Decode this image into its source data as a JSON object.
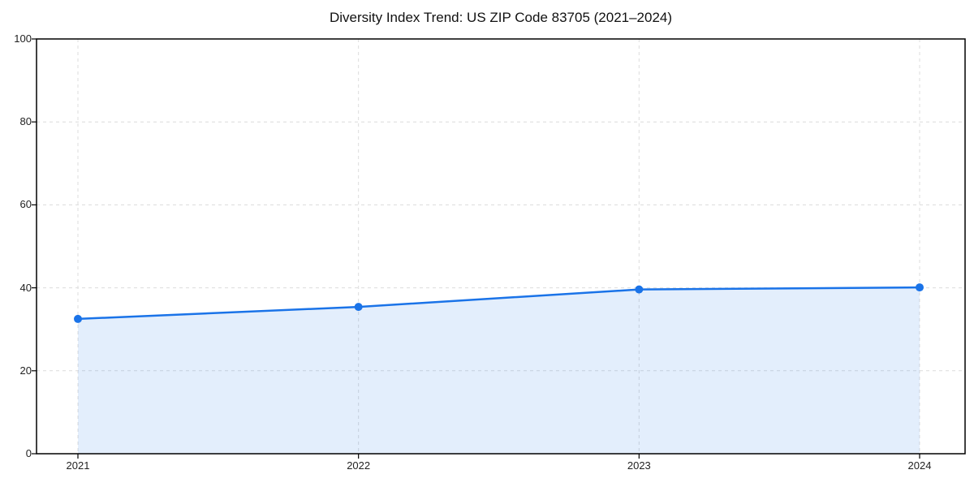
{
  "chart_data": {
    "type": "area",
    "title": "Diversity Index Trend: US ZIP Code 83705 (2021–2024)",
    "x": [
      2021,
      2022,
      2023,
      2024
    ],
    "series": [
      {
        "name": "Diversity Index",
        "values": [
          32.5,
          35.4,
          39.6,
          40.1
        ]
      }
    ],
    "xlabel": "",
    "ylabel": "",
    "ylim": [
      0,
      100
    ],
    "yticks": [
      0,
      20,
      40,
      60,
      80,
      100
    ],
    "xticks": [
      "2021",
      "2022",
      "2023",
      "2024"
    ],
    "grid": true,
    "legend": "none",
    "colors": {
      "line": "#1a73e8",
      "marker": "#1a73e8",
      "fill": "rgba(26,115,232,0.12)",
      "gridline": "#dcdcdc",
      "spine": "#000000",
      "tick_text": "#222222",
      "title_text": "#111111"
    }
  }
}
